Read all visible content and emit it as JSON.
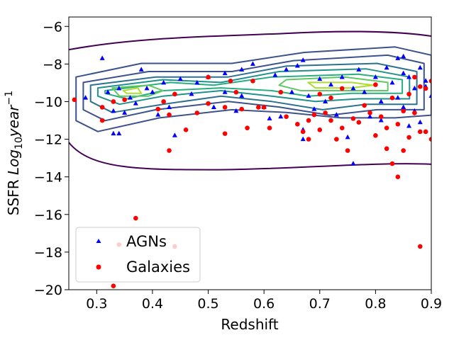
{
  "chart_data": {
    "type": "scatter",
    "xlabel": "Redshift",
    "ylabel_prefix": "SSFR ",
    "ylabel_math_main": "Log",
    "ylabel_math_sub": "10",
    "ylabel_math_rest": "year",
    "ylabel_math_sup": "−1",
    "xlim": [
      0.25,
      0.9
    ],
    "ylim": [
      -20,
      -5.5
    ],
    "xticks": [
      0.3,
      0.4,
      0.5,
      0.6,
      0.7,
      0.8,
      0.9
    ],
    "xtick_labels": [
      "0.3",
      "0.4",
      "0.5",
      "0.6",
      "0.7",
      "0.8",
      "0.9"
    ],
    "yticks": [
      -20,
      -18,
      -16,
      -14,
      -12,
      -10,
      -8,
      -6
    ],
    "ytick_labels": [
      "−20",
      "−18",
      "−16",
      "−14",
      "−12",
      "−10",
      "−8",
      "−6"
    ],
    "grid": false,
    "legend_position": "lower-left",
    "contour_colors": [
      "#440154",
      "#3b528b",
      "#2c728e",
      "#21918c",
      "#28ae80",
      "#5ec962",
      "#addc30"
    ],
    "series": [
      {
        "name": "AGNs",
        "marker": "triangle",
        "color": "#0000ff",
        "points": [
          [
            0.28,
            -9.8
          ],
          [
            0.31,
            -7.7
          ],
          [
            0.32,
            -9.5
          ],
          [
            0.33,
            -10.5
          ],
          [
            0.33,
            -11.7
          ],
          [
            0.34,
            -9.3
          ],
          [
            0.34,
            -11.7
          ],
          [
            0.35,
            -10.6
          ],
          [
            0.36,
            -9.8
          ],
          [
            0.37,
            -10.1
          ],
          [
            0.38,
            -8.3
          ],
          [
            0.39,
            -9.3
          ],
          [
            0.4,
            -9.5
          ],
          [
            0.41,
            -10.7
          ],
          [
            0.42,
            -9.0
          ],
          [
            0.43,
            -10.3
          ],
          [
            0.44,
            -11.8
          ],
          [
            0.45,
            -8.8
          ],
          [
            0.47,
            -9.6
          ],
          [
            0.48,
            -9.0
          ],
          [
            0.5,
            -8.7
          ],
          [
            0.51,
            -10.3
          ],
          [
            0.53,
            -8.5
          ],
          [
            0.53,
            -9.5
          ],
          [
            0.55,
            -10.5
          ],
          [
            0.56,
            -8.3
          ],
          [
            0.56,
            -9.7
          ],
          [
            0.58,
            -8.0
          ],
          [
            0.6,
            -10.3
          ],
          [
            0.61,
            -10.9
          ],
          [
            0.62,
            -8.6
          ],
          [
            0.63,
            -10.8
          ],
          [
            0.64,
            -8.3
          ],
          [
            0.65,
            -9.5
          ],
          [
            0.66,
            -8.1
          ],
          [
            0.67,
            -7.8
          ],
          [
            0.67,
            -11.5
          ],
          [
            0.67,
            -12.0
          ],
          [
            0.68,
            -9.7
          ],
          [
            0.69,
            -10.4
          ],
          [
            0.7,
            -8.8
          ],
          [
            0.71,
            -10.0
          ],
          [
            0.72,
            -9.1
          ],
          [
            0.73,
            -10.7
          ],
          [
            0.74,
            -8.7
          ],
          [
            0.75,
            -11.9
          ],
          [
            0.76,
            -9.3
          ],
          [
            0.76,
            -13.3
          ],
          [
            0.77,
            -8.3
          ],
          [
            0.78,
            -9.5
          ],
          [
            0.79,
            -10.8
          ],
          [
            0.8,
            -8.7
          ],
          [
            0.81,
            -11.0
          ],
          [
            0.81,
            -10.0
          ],
          [
            0.82,
            -8.2
          ],
          [
            0.83,
            -9.0
          ],
          [
            0.84,
            -7.7
          ],
          [
            0.84,
            -9.8
          ],
          [
            0.85,
            -8.5
          ],
          [
            0.85,
            -10.3
          ],
          [
            0.86,
            -11.3
          ],
          [
            0.86,
            -8.7
          ],
          [
            0.87,
            -9.3
          ],
          [
            0.87,
            -10.5
          ],
          [
            0.88,
            -8.2
          ],
          [
            0.88,
            -11.1
          ],
          [
            0.89,
            -9.2
          ],
          [
            0.89,
            -8.9
          ],
          [
            0.9,
            -9.7
          ],
          [
            0.85,
            -7.6
          ]
        ]
      },
      {
        "name": "Galaxies",
        "marker": "circle",
        "color": "#ff0000",
        "points": [
          [
            0.26,
            -9.9
          ],
          [
            0.31,
            -10.3
          ],
          [
            0.31,
            -11.0
          ],
          [
            0.33,
            -19.8
          ],
          [
            0.33,
            -10.0
          ],
          [
            0.34,
            -17.6
          ],
          [
            0.35,
            -9.9
          ],
          [
            0.37,
            -16.2
          ],
          [
            0.41,
            -10.4
          ],
          [
            0.42,
            -10.0
          ],
          [
            0.43,
            -10.7
          ],
          [
            0.43,
            -12.6
          ],
          [
            0.44,
            -17.7
          ],
          [
            0.44,
            -9.6
          ],
          [
            0.46,
            -11.5
          ],
          [
            0.48,
            -10.6
          ],
          [
            0.5,
            -10.1
          ],
          [
            0.5,
            -8.7
          ],
          [
            0.53,
            -10.3
          ],
          [
            0.53,
            -11.7
          ],
          [
            0.54,
            -8.9
          ],
          [
            0.55,
            -9.5
          ],
          [
            0.56,
            -10.4
          ],
          [
            0.57,
            -11.4
          ],
          [
            0.58,
            -8.9
          ],
          [
            0.59,
            -10.3
          ],
          [
            0.6,
            -10.3
          ],
          [
            0.61,
            -11.4
          ],
          [
            0.63,
            -9.5
          ],
          [
            0.64,
            -10.8
          ],
          [
            0.66,
            -11.2
          ],
          [
            0.67,
            -11.6
          ],
          [
            0.68,
            -11.0
          ],
          [
            0.68,
            -12.0
          ],
          [
            0.69,
            -10.7
          ],
          [
            0.7,
            -11.5
          ],
          [
            0.7,
            -9.6
          ],
          [
            0.71,
            -10.6
          ],
          [
            0.72,
            -9.8
          ],
          [
            0.72,
            -11.0
          ],
          [
            0.73,
            -12.0
          ],
          [
            0.74,
            -9.3
          ],
          [
            0.74,
            -11.4
          ],
          [
            0.75,
            -12.6
          ],
          [
            0.76,
            -10.9
          ],
          [
            0.77,
            -11.1
          ],
          [
            0.78,
            -10.2
          ],
          [
            0.79,
            -10.6
          ],
          [
            0.8,
            -11.8
          ],
          [
            0.81,
            -10.8
          ],
          [
            0.82,
            -11.4
          ],
          [
            0.82,
            -12.5
          ],
          [
            0.83,
            -9.8
          ],
          [
            0.83,
            -13.3
          ],
          [
            0.84,
            -14.0
          ],
          [
            0.84,
            -11.2
          ],
          [
            0.85,
            -12.6
          ],
          [
            0.85,
            -10.5
          ],
          [
            0.86,
            -9.6
          ],
          [
            0.86,
            -11.9
          ],
          [
            0.87,
            -10.6
          ],
          [
            0.87,
            -8.7
          ],
          [
            0.88,
            -9.2
          ],
          [
            0.88,
            -11.6
          ],
          [
            0.88,
            -17.7
          ],
          [
            0.89,
            -11.6
          ],
          [
            0.89,
            -9.3
          ],
          [
            0.9,
            -12.0
          ],
          [
            0.9,
            -8.9
          ],
          [
            0.8,
            -9.1
          ]
        ]
      }
    ]
  }
}
